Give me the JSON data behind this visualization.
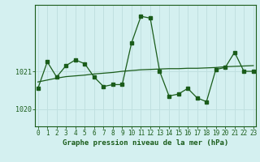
{
  "title": "Graphe pression niveau de la mer (hPa)",
  "background_color": "#d4f0f0",
  "grid_color": "#c0e0e0",
  "line_color": "#1a5c1a",
  "x_ticks": [
    0,
    1,
    2,
    3,
    4,
    5,
    6,
    7,
    8,
    9,
    10,
    11,
    12,
    13,
    14,
    15,
    16,
    17,
    18,
    19,
    20,
    21,
    22,
    23
  ],
  "y_ticks": [
    1020,
    1021
  ],
  "xlim": [
    -0.3,
    23.3
  ],
  "ylim": [
    1019.55,
    1022.75
  ],
  "data_line": [
    1020.55,
    1021.25,
    1020.85,
    1021.15,
    1021.3,
    1021.2,
    1020.85,
    1020.6,
    1020.65,
    1020.65,
    1021.75,
    1022.45,
    1022.4,
    1021.0,
    1020.35,
    1020.4,
    1020.55,
    1020.3,
    1020.2,
    1021.05,
    1021.1,
    1021.5,
    1021.0,
    1021.0
  ],
  "trend_line": [
    1020.72,
    1020.77,
    1020.82,
    1020.86,
    1020.88,
    1020.9,
    1020.93,
    1020.95,
    1020.97,
    1021.0,
    1021.02,
    1021.04,
    1021.05,
    1021.06,
    1021.07,
    1021.07,
    1021.08,
    1021.08,
    1021.09,
    1021.1,
    1021.12,
    1021.13,
    1021.14,
    1021.15
  ],
  "ylabel_1020_pos": 1020,
  "ylabel_1021_pos": 1021,
  "title_fontsize": 6.5,
  "tick_fontsize": 5.5
}
